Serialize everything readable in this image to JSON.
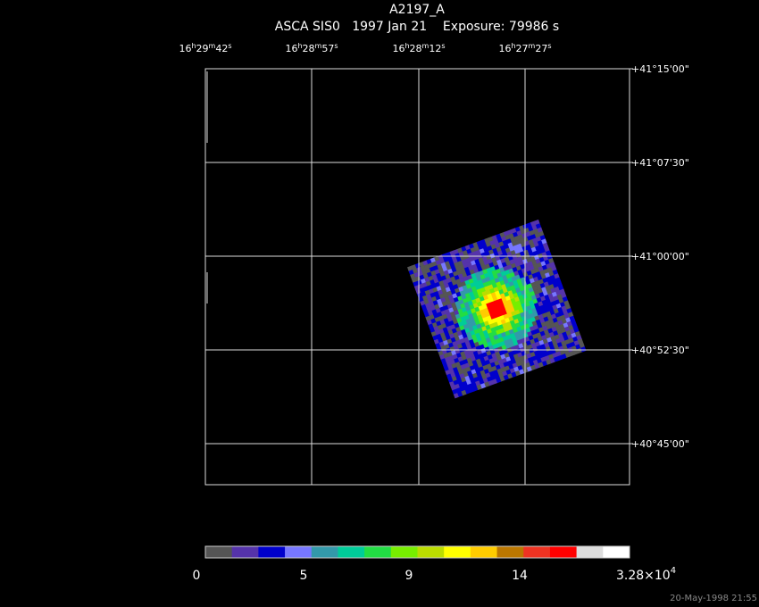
{
  "header": {
    "title": "A2197_A",
    "subtitle": "ASCA SIS0   1997 Jan 21    Exposure: 79986 s"
  },
  "ra_labels": [
    [
      "16",
      "h",
      "29",
      "m",
      "42",
      "s"
    ],
    [
      "16",
      "h",
      "28",
      "m",
      "57",
      "s"
    ],
    [
      "16",
      "h",
      "28",
      "m",
      "12",
      "s"
    ],
    [
      "16",
      "h",
      "27",
      "m",
      "27",
      "s"
    ]
  ],
  "dec_labels": [
    "+41°15'00\"",
    "+41°07'30\"",
    "+41°00'00\"",
    "+40°52'30\"",
    "+40°45'00\""
  ],
  "colorbar": {
    "labels": [
      "0",
      "5",
      "9",
      "14"
    ],
    "max_label": {
      "mantissa": "3.28×10",
      "exponent": "4"
    }
  },
  "footer": "20-May-1998 21:55"
}
